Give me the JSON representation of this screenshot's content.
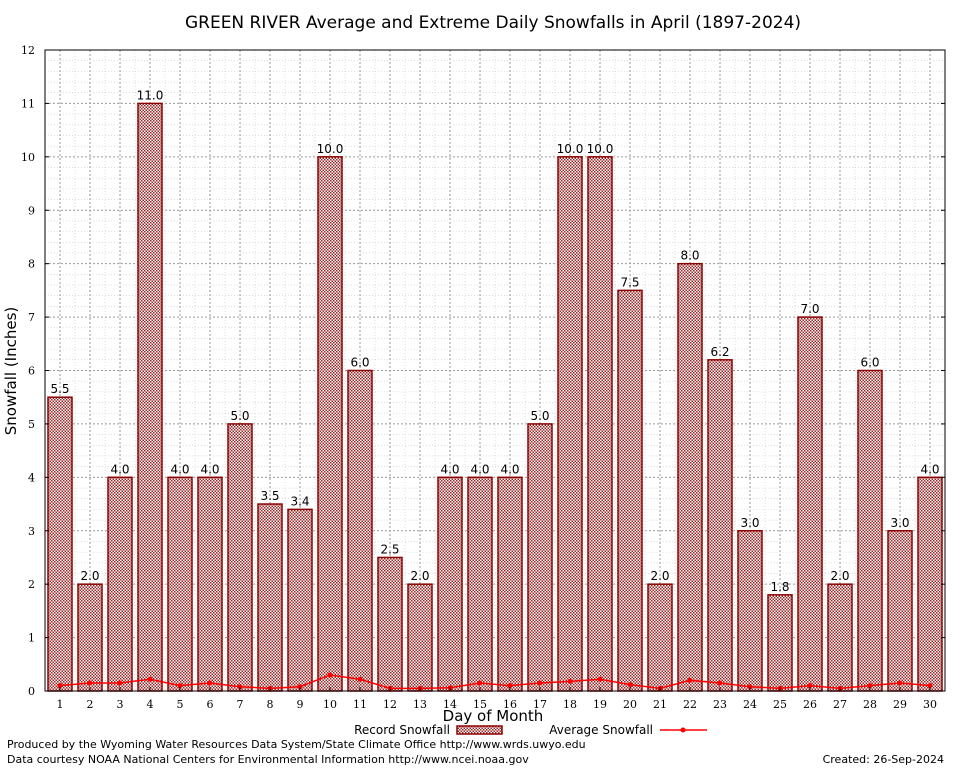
{
  "chart_data": {
    "type": "bar",
    "title": "GREEN RIVER Average and Extreme Daily Snowfalls in April (1897-2024)",
    "xlabel": "Day of Month",
    "ylabel": "Snowfall (Inches)",
    "ylim": [
      0,
      12
    ],
    "yticks": [
      "0",
      "1",
      "2",
      "3",
      "4",
      "5",
      "6",
      "7",
      "8",
      "9",
      "10",
      "11",
      "12"
    ],
    "categories": [
      "1",
      "2",
      "3",
      "4",
      "5",
      "6",
      "7",
      "8",
      "9",
      "10",
      "11",
      "12",
      "13",
      "14",
      "15",
      "16",
      "17",
      "18",
      "19",
      "20",
      "21",
      "22",
      "23",
      "24",
      "25",
      "26",
      "27",
      "28",
      "29",
      "30"
    ],
    "series": [
      {
        "name": "Record Snowfall",
        "type": "bar",
        "color": "#8b0000",
        "values": [
          5.5,
          2.0,
          4.0,
          11.0,
          4.0,
          4.0,
          5.0,
          3.5,
          3.4,
          10.0,
          6.0,
          2.5,
          2.0,
          4.0,
          4.0,
          4.0,
          5.0,
          10.0,
          10.0,
          7.5,
          2.0,
          8.0,
          6.2,
          3.0,
          1.8,
          7.0,
          2.0,
          6.0,
          3.0,
          4.0
        ],
        "labels": [
          "5.5",
          "2.0",
          "4.0",
          "11.0",
          "4.0",
          "4.0",
          "5.0",
          "3.5",
          "3.4",
          "10.0",
          "6.0",
          "2.5",
          "2.0",
          "4.0",
          "4.0",
          "4.0",
          "5.0",
          "10.0",
          "10.0",
          "7.5",
          "2.0",
          "8.0",
          "6.2",
          "3.0",
          "1.8",
          "7.0",
          "2.0",
          "6.0",
          "3.0",
          "4.0"
        ]
      },
      {
        "name": "Average Snowfall",
        "type": "line",
        "color": "#ff0000",
        "values": [
          0.1,
          0.15,
          0.15,
          0.22,
          0.1,
          0.15,
          0.08,
          0.05,
          0.08,
          0.3,
          0.22,
          0.05,
          0.05,
          0.06,
          0.15,
          0.1,
          0.15,
          0.18,
          0.22,
          0.12,
          0.05,
          0.2,
          0.15,
          0.08,
          0.05,
          0.1,
          0.05,
          0.1,
          0.15,
          0.1
        ]
      }
    ],
    "grid": true,
    "legend": "bottom"
  },
  "footer": {
    "produced_by": "Produced by the Wyoming Water Resources Data System/State Climate Office http://www.wrds.uwyo.edu",
    "courtesy": "Data courtesy NOAA National Centers for Environmental Information http://www.ncei.noaa.gov",
    "created": "Created:  26-Sep-2024"
  }
}
